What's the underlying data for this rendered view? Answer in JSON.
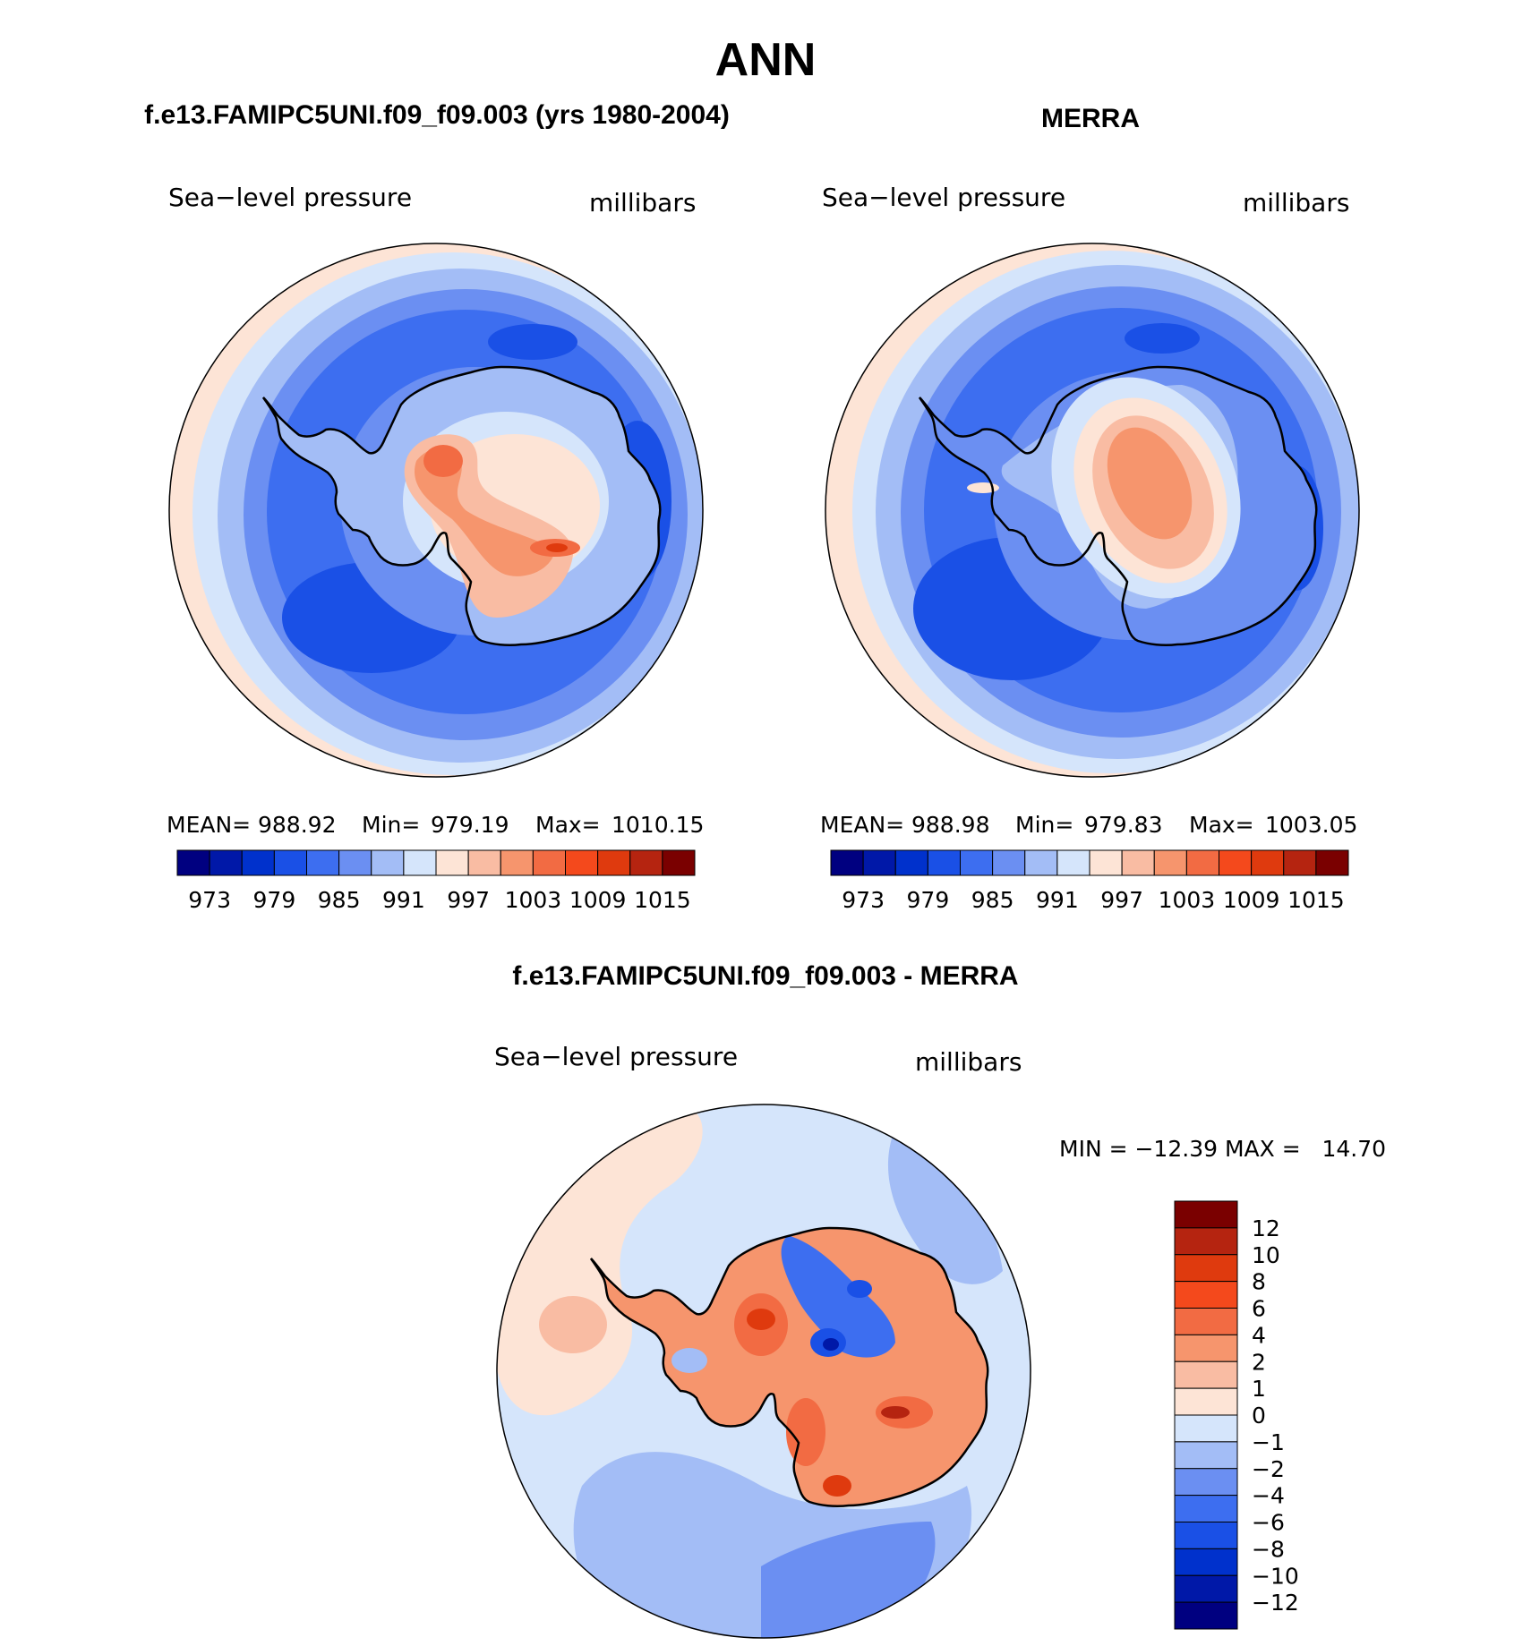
{
  "title": "ANN",
  "chart_data": [
    {
      "type": "heatmap",
      "projection": "south polar stereographic",
      "title": "f.e13.FAMIPC5UNI.f09_f09.003 (yrs 1980-2004)",
      "left_label": "Sea−level pressure",
      "right_label": "millibars",
      "stats": {
        "mean_label": "MEAN=",
        "mean": "988.92",
        "min_label": "Min=",
        "min": "979.19",
        "max_label": "Max=",
        "max": "1010.15"
      },
      "colorbar_ticks": [
        "973",
        "979",
        "985",
        "991",
        "997",
        "1003",
        "1009",
        "1015"
      ],
      "colorbar_colors": [
        "#000080",
        "#0018a8",
        "#0031cc",
        "#1a50e6",
        "#3d6ef0",
        "#6b8ff2",
        "#a3bdf6",
        "#d5e5fb",
        "#fde4d6",
        "#f9bca3",
        "#f6956d",
        "#f26b43",
        "#f4491c",
        "#df3a0e",
        "#b52410",
        "#7a0000"
      ],
      "field_colors": {
        "outer": "#fde4d6",
        "ring1": "#d5e5fb",
        "ring2": "#a3bdf6",
        "ring3": "#6b8ff2",
        "trough": "#3d6ef0",
        "low": "#1a50e6",
        "continent": "#a3bdf6",
        "plateau": "#d5e5fb",
        "high1": "#fde4d6",
        "high2": "#f9bca3",
        "high3": "#f6956d",
        "high4": "#f26b43"
      }
    },
    {
      "type": "heatmap",
      "projection": "south polar stereographic",
      "title": "MERRA",
      "left_label": "Sea−level pressure",
      "right_label": "millibars",
      "stats": {
        "mean_label": "MEAN=",
        "mean": "988.98",
        "min_label": "Min=",
        "min": "979.83",
        "max_label": "Max=",
        "max": "1003.05"
      },
      "colorbar_ticks": [
        "973",
        "979",
        "985",
        "991",
        "997",
        "1003",
        "1009",
        "1015"
      ],
      "colorbar_colors": [
        "#000080",
        "#0018a8",
        "#0031cc",
        "#1a50e6",
        "#3d6ef0",
        "#6b8ff2",
        "#a3bdf6",
        "#d5e5fb",
        "#fde4d6",
        "#f9bca3",
        "#f6956d",
        "#f26b43",
        "#f4491c",
        "#df3a0e",
        "#b52410",
        "#7a0000"
      ],
      "field_colors": {
        "outer": "#fde4d6",
        "ring1": "#d5e5fb",
        "ring2": "#a3bdf6",
        "ring3": "#6b8ff2",
        "trough": "#3d6ef0",
        "low": "#1a50e6",
        "continent": "#6b8ff2",
        "plateau": "#d5e5fb",
        "high1": "#fde4d6",
        "high2": "#f9bca3",
        "high3": "#f6956d",
        "high4": "#f6956d"
      }
    },
    {
      "type": "heatmap",
      "projection": "south polar stereographic",
      "title": "f.e13.FAMIPC5UNI.f09_f09.003 - MERRA",
      "left_label": "Sea−level pressure",
      "right_label": "millibars",
      "range_text": "MIN = −12.39 MAX =   14.70",
      "colorbar_ticks": [
        "12",
        "10",
        "8",
        "6",
        "4",
        "2",
        "1",
        "0",
        "−1",
        "−2",
        "−4",
        "−6",
        "−8",
        "−10",
        "−12"
      ],
      "colorbar_colors": [
        "#7a0000",
        "#b52410",
        "#df3a0e",
        "#f4491c",
        "#f26b43",
        "#f6956d",
        "#f9bca3",
        "#fde4d6",
        "#d5e5fb",
        "#a3bdf6",
        "#6b8ff2",
        "#3d6ef0",
        "#1a50e6",
        "#0031cc",
        "#0018a8",
        "#000080"
      ],
      "field_colors": {
        "ocean": "#d5e5fb",
        "ocean_neg": "#a3bdf6",
        "ocean_neg2": "#6b8ff2",
        "pos_ocean": "#fde4d6",
        "pos_ocean2": "#f9bca3",
        "land_pos": "#f6956d",
        "land_pos2": "#f26b43",
        "land_pos3": "#df3a0e",
        "land_pos4": "#b52410",
        "land_neg": "#3d6ef0",
        "land_neg2": "#1a50e6",
        "land_neg3": "#0018a8"
      }
    }
  ]
}
